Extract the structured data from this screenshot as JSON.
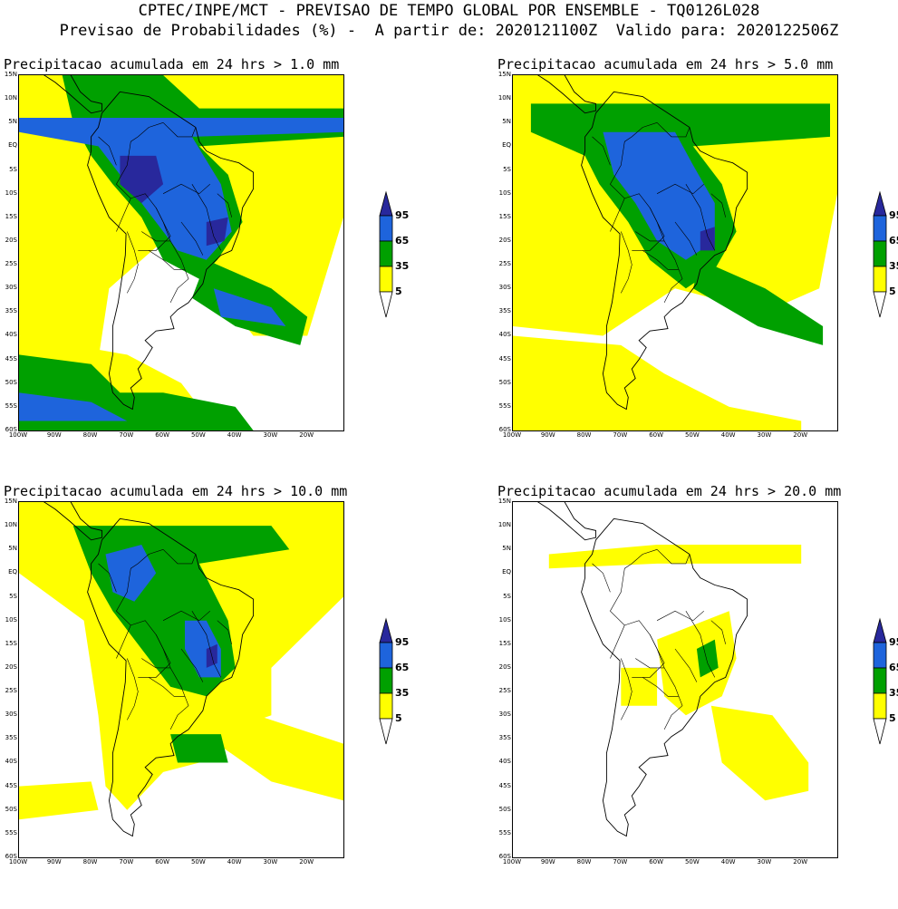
{
  "header": {
    "line1": "CPTEC/INPE/MCT - PREVISAO DE TEMPO GLOBAL POR ENSEMBLE - TQ0126L028",
    "line2": "Previsao de Probabilidades (%) -  A partir de: 2020121100Z  Valido para: 2020122506Z"
  },
  "colors": {
    "p5": "#ffff00",
    "p35": "#00a000",
    "p65": "#1e64dc",
    "p95": "#28289c"
  },
  "lat_labels": [
    "15N",
    "10N",
    "5N",
    "EQ",
    "5S",
    "10S",
    "15S",
    "20S",
    "25S",
    "30S",
    "35S",
    "40S",
    "45S",
    "50S",
    "55S",
    "60S"
  ],
  "lon_labels": [
    "100W",
    "90W",
    "80W",
    "70W",
    "60W",
    "50W",
    "40W",
    "30W",
    "20W"
  ],
  "colorbar_labels": [
    "95",
    "65",
    "35",
    "5"
  ],
  "panels": [
    {
      "id": "p1",
      "title": "Precipitacao acumulada em 24 hrs > 1.0 mm"
    },
    {
      "id": "p2",
      "title": "Precipitacao acumulada em 24 hrs > 5.0 mm"
    },
    {
      "id": "p3",
      "title": "Precipitacao acumulada em 24 hrs > 10.0 mm"
    },
    {
      "id": "p4",
      "title": "Precipitacao acumulada em 24 hrs > 20.0 mm"
    }
  ]
}
